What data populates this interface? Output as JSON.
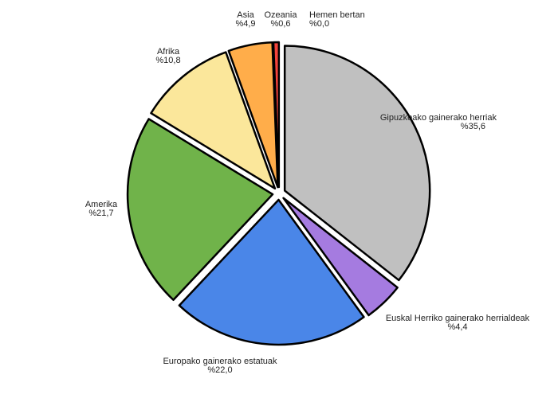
{
  "chart_data": {
    "type": "pie",
    "title": "",
    "start": "top",
    "direction": "clockwise",
    "exploded": true,
    "slices": [
      {
        "label": "Hemen bertan",
        "value_label": "%0,0",
        "value": 0.0,
        "color": "#f4433b"
      },
      {
        "label": "Gipuzkoako gainerako herriak",
        "value_label": "%35,6",
        "value": 35.6,
        "color": "#c0c0c0"
      },
      {
        "label": "Euskal Herriko gainerako herrialdeak",
        "value_label": "%4,4",
        "value": 4.4,
        "color": "#a57be0"
      },
      {
        "label": "Europako gainerako estatuak",
        "value_label": "%22,0",
        "value": 22.0,
        "color": "#4a86e8"
      },
      {
        "label": "Amerika",
        "value_label": "%21,7",
        "value": 21.7,
        "color": "#70b34a"
      },
      {
        "label": "Afrika",
        "value_label": "%10,8",
        "value": 10.8,
        "color": "#fbe79b"
      },
      {
        "label": "Asia",
        "value_label": "%4,9",
        "value": 4.9,
        "color": "#ffad4a"
      },
      {
        "label": "Ozeania",
        "value_label": "%0,6",
        "value": 0.6,
        "color": "#f4433b"
      }
    ]
  }
}
